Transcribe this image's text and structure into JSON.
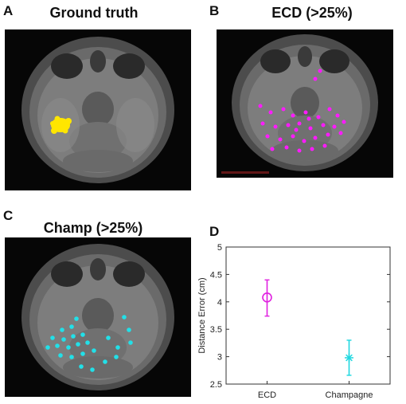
{
  "panels": [
    {
      "letter": "A",
      "title": "Ground truth",
      "marker_color": "#ffe600"
    },
    {
      "letter": "B",
      "title": "ECD (>25%)",
      "marker_color": "#ff1aff"
    },
    {
      "letter": "C",
      "title": "Champ (>25%)",
      "marker_color": "#22e0e8"
    },
    {
      "letter": "D",
      "title": ""
    }
  ],
  "chart_data": {
    "type": "scatter",
    "ylabel": "Distance Error (cm)",
    "xlabel": "",
    "categories": [
      "ECD",
      "Champagne"
    ],
    "ylim": [
      2.5,
      5
    ],
    "yticks": [
      2.5,
      3,
      3.5,
      4,
      4.5,
      5
    ],
    "ytick_labels": [
      "2.5",
      "3",
      "3.5",
      "4",
      "4.5",
      "5"
    ],
    "grid": false,
    "points": [
      {
        "category": "ECD",
        "mean": 4.08,
        "lower": 3.74,
        "upper": 4.4,
        "marker": "circle",
        "color": "#e020e0"
      },
      {
        "category": "Champagne",
        "mean": 2.98,
        "lower": 2.66,
        "upper": 3.3,
        "marker": "asterisk",
        "color": "#20d8e0"
      }
    ]
  }
}
